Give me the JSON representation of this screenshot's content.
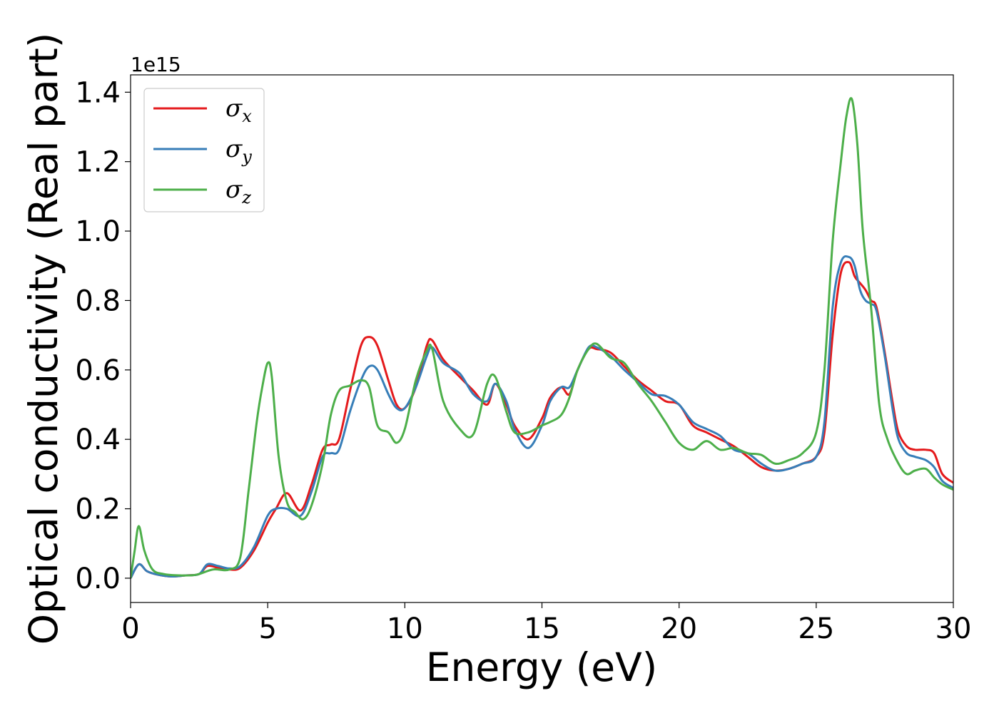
{
  "chart_data": {
    "type": "line",
    "xlabel": "Energy (eV)",
    "ylabel": "Optical conductivity (Real part)",
    "y_offset_label": "1e15",
    "xlim": [
      0,
      30
    ],
    "ylim": [
      -0.07,
      1.45
    ],
    "x_ticks": [
      0,
      5,
      10,
      15,
      20,
      25,
      30
    ],
    "x_tick_labels": [
      "0",
      "5",
      "10",
      "15",
      "20",
      "25",
      "30"
    ],
    "y_ticks": [
      0.0,
      0.2,
      0.4,
      0.6,
      0.8,
      1.0,
      1.2,
      1.4
    ],
    "y_tick_labels": [
      "0.0",
      "0.2",
      "0.4",
      "0.6",
      "0.8",
      "1.0",
      "1.2",
      "1.4"
    ],
    "grid": false,
    "legend_position": "top-left",
    "series": [
      {
        "name": "σx",
        "symbol": "σ",
        "subscript": "x",
        "color": "#e41a1c",
        "x": [
          0,
          0.3,
          0.6,
          1.0,
          1.5,
          2.0,
          2.5,
          2.8,
          3.2,
          3.6,
          4.0,
          4.5,
          5.0,
          5.3,
          5.7,
          6.2,
          6.6,
          7.0,
          7.3,
          7.6,
          8.0,
          8.4,
          8.7,
          9.0,
          9.4,
          9.7,
          10.0,
          10.4,
          10.8,
          11.0,
          11.4,
          12.0,
          12.5,
          13.0,
          13.3,
          13.7,
          14.0,
          14.5,
          15.0,
          15.3,
          15.7,
          16.0,
          16.3,
          16.7,
          17.0,
          17.5,
          18.0,
          18.5,
          19.0,
          19.5,
          20.0,
          20.5,
          21.0,
          21.5,
          22.0,
          22.5,
          23.0,
          23.5,
          24.0,
          24.5,
          25.0,
          25.3,
          25.6,
          25.9,
          26.2,
          26.4,
          26.6,
          26.8,
          27.0,
          27.2,
          27.5,
          27.8,
          28.0,
          28.3,
          28.6,
          29.0,
          29.3,
          29.6,
          30.0
        ],
        "y": [
          0.0,
          0.04,
          0.02,
          0.01,
          0.005,
          0.008,
          0.012,
          0.035,
          0.03,
          0.025,
          0.03,
          0.08,
          0.16,
          0.2,
          0.245,
          0.195,
          0.27,
          0.37,
          0.385,
          0.4,
          0.54,
          0.67,
          0.695,
          0.67,
          0.57,
          0.5,
          0.49,
          0.55,
          0.67,
          0.685,
          0.63,
          0.58,
          0.54,
          0.5,
          0.56,
          0.5,
          0.44,
          0.4,
          0.46,
          0.52,
          0.55,
          0.53,
          0.6,
          0.66,
          0.66,
          0.65,
          0.61,
          0.57,
          0.54,
          0.51,
          0.5,
          0.44,
          0.42,
          0.4,
          0.38,
          0.35,
          0.32,
          0.31,
          0.315,
          0.33,
          0.35,
          0.42,
          0.7,
          0.88,
          0.91,
          0.87,
          0.85,
          0.83,
          0.8,
          0.78,
          0.65,
          0.5,
          0.42,
          0.38,
          0.37,
          0.37,
          0.36,
          0.3,
          0.275
        ]
      },
      {
        "name": "σy",
        "symbol": "σ",
        "subscript": "y",
        "color": "#377eb8",
        "x": [
          0,
          0.3,
          0.6,
          1.0,
          1.5,
          2.0,
          2.5,
          2.8,
          3.2,
          3.6,
          4.0,
          4.5,
          5.0,
          5.3,
          5.7,
          6.2,
          6.6,
          7.0,
          7.3,
          7.6,
          8.0,
          8.4,
          8.7,
          9.0,
          9.4,
          9.7,
          10.0,
          10.4,
          10.8,
          11.0,
          11.4,
          12.0,
          12.5,
          13.0,
          13.3,
          13.7,
          14.0,
          14.5,
          15.0,
          15.3,
          15.7,
          16.0,
          16.3,
          16.7,
          17.0,
          17.5,
          18.0,
          18.5,
          19.0,
          19.5,
          20.0,
          20.5,
          21.0,
          21.5,
          22.0,
          22.5,
          23.0,
          23.5,
          24.0,
          24.5,
          25.0,
          25.3,
          25.6,
          25.9,
          26.2,
          26.4,
          26.6,
          26.8,
          27.0,
          27.2,
          27.5,
          27.8,
          28.0,
          28.3,
          28.6,
          29.0,
          29.3,
          29.6,
          30.0
        ],
        "y": [
          0.0,
          0.04,
          0.02,
          0.01,
          0.005,
          0.008,
          0.012,
          0.04,
          0.035,
          0.028,
          0.035,
          0.09,
          0.18,
          0.2,
          0.2,
          0.18,
          0.25,
          0.35,
          0.36,
          0.37,
          0.48,
          0.57,
          0.61,
          0.6,
          0.53,
          0.49,
          0.49,
          0.55,
          0.64,
          0.665,
          0.62,
          0.59,
          0.53,
          0.51,
          0.56,
          0.51,
          0.43,
          0.375,
          0.44,
          0.51,
          0.55,
          0.55,
          0.6,
          0.665,
          0.665,
          0.64,
          0.6,
          0.565,
          0.53,
          0.525,
          0.5,
          0.45,
          0.43,
          0.41,
          0.37,
          0.36,
          0.33,
          0.31,
          0.315,
          0.33,
          0.35,
          0.45,
          0.78,
          0.91,
          0.925,
          0.9,
          0.83,
          0.8,
          0.79,
          0.77,
          0.64,
          0.48,
          0.4,
          0.36,
          0.35,
          0.34,
          0.32,
          0.28,
          0.26
        ]
      },
      {
        "name": "σz",
        "symbol": "σ",
        "subscript": "z",
        "color": "#4daf4a",
        "x": [
          0,
          0.15,
          0.3,
          0.5,
          0.8,
          1.2,
          1.8,
          2.4,
          3.0,
          3.6,
          4.0,
          4.3,
          4.6,
          4.8,
          5.0,
          5.15,
          5.4,
          5.7,
          6.0,
          6.3,
          6.6,
          7.0,
          7.3,
          7.6,
          8.0,
          8.4,
          8.7,
          9.0,
          9.4,
          9.7,
          10.0,
          10.4,
          10.8,
          11.0,
          11.4,
          12.0,
          12.5,
          13.0,
          13.3,
          13.7,
          14.0,
          14.5,
          15.0,
          15.3,
          15.7,
          16.0,
          16.3,
          16.7,
          17.0,
          17.5,
          18.0,
          18.5,
          19.0,
          19.5,
          20.0,
          20.5,
          21.0,
          21.5,
          22.0,
          22.5,
          23.0,
          23.5,
          24.0,
          24.5,
          25.0,
          25.3,
          25.6,
          25.9,
          26.1,
          26.3,
          26.5,
          26.7,
          27.0,
          27.3,
          27.6,
          28.0,
          28.3,
          28.6,
          29.0,
          29.3,
          29.6,
          30.0
        ],
        "y": [
          0.0,
          0.08,
          0.15,
          0.08,
          0.025,
          0.012,
          0.008,
          0.01,
          0.025,
          0.025,
          0.06,
          0.25,
          0.45,
          0.55,
          0.62,
          0.58,
          0.35,
          0.22,
          0.19,
          0.17,
          0.21,
          0.33,
          0.47,
          0.54,
          0.555,
          0.57,
          0.55,
          0.44,
          0.42,
          0.39,
          0.43,
          0.57,
          0.655,
          0.66,
          0.51,
          0.43,
          0.415,
          0.56,
          0.58,
          0.48,
          0.42,
          0.42,
          0.44,
          0.45,
          0.47,
          0.52,
          0.6,
          0.66,
          0.675,
          0.635,
          0.62,
          0.56,
          0.51,
          0.45,
          0.39,
          0.37,
          0.395,
          0.37,
          0.375,
          0.36,
          0.355,
          0.33,
          0.34,
          0.36,
          0.42,
          0.6,
          0.97,
          1.2,
          1.33,
          1.38,
          1.25,
          1.0,
          0.78,
          0.5,
          0.4,
          0.33,
          0.3,
          0.31,
          0.315,
          0.29,
          0.27,
          0.255
        ]
      }
    ]
  }
}
